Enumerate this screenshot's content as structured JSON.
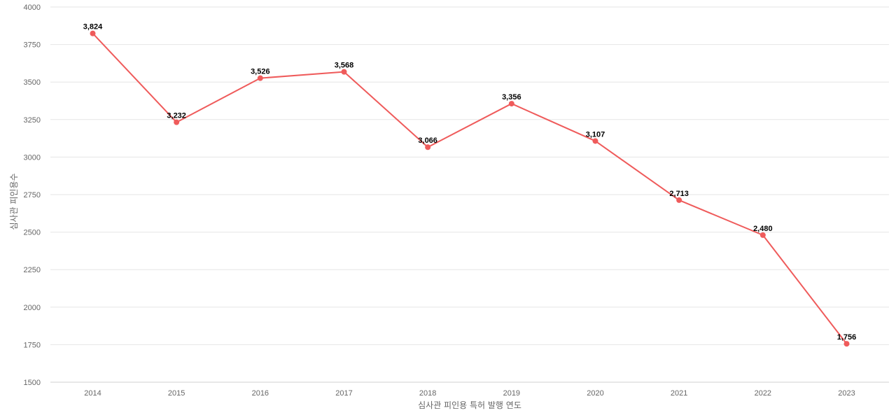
{
  "chart_data": {
    "type": "line",
    "title": "",
    "xlabel": "심사관 피인용 특허 발행 연도",
    "ylabel": "심사관 피인용수",
    "categories": [
      "2014",
      "2015",
      "2016",
      "2017",
      "2018",
      "2019",
      "2020",
      "2021",
      "2022",
      "2023"
    ],
    "series": [
      {
        "values": [
          3824,
          3232,
          3526,
          3568,
          3066,
          3356,
          3107,
          2713,
          2480,
          1756
        ],
        "labels": [
          "3,824",
          "3,232",
          "3,526",
          "3,568",
          "3,066",
          "3,356",
          "3,107",
          "2,713",
          "2,480",
          "1,756"
        ],
        "color": "#ef5b5b"
      }
    ],
    "ylim": [
      1500,
      4000
    ],
    "yticks": [
      "1500",
      "1750",
      "2000",
      "2250",
      "2500",
      "2750",
      "3000",
      "3250",
      "3500",
      "3750",
      "4000"
    ],
    "grid": true,
    "legend": "none"
  }
}
